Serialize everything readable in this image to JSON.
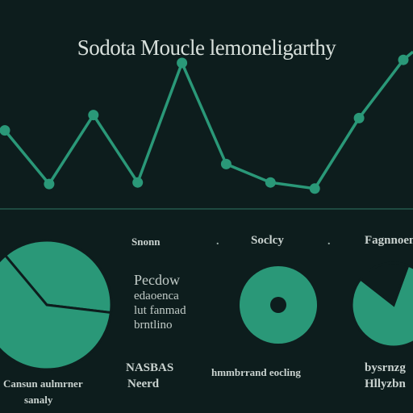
{
  "title": "Sodota Moucle lemoneligarthy",
  "colors": {
    "background": "#0d1d1d",
    "accent": "#2a9878",
    "text": "#d8e0dc",
    "divider": "#1e4a40"
  },
  "labels": {
    "col1_head": "Snonn",
    "col1_dots": ".",
    "col2_head": "Soclcy",
    "col2_dots": ".",
    "col3_head": "Fagnnoemen",
    "block_lines": [
      "Pecdow",
      "edaoenca",
      "lut fanmad",
      "brntlino"
    ],
    "footer_left_1": "Cansun aulmrner",
    "footer_left_2": "sanaly",
    "footer_mid_1": "NASBAS",
    "footer_mid_2": "Neerd",
    "footer_center": "hmmbrrand eocling",
    "footer_right_1": "bysrnzg",
    "footer_right_2": "Hllyzbn"
  },
  "chart_data": [
    {
      "type": "line",
      "title": "Sodota Moucle lemoneligarthy",
      "x": [
        1,
        2,
        3,
        4,
        5,
        6,
        7,
        8,
        9,
        10
      ],
      "series": [
        {
          "values": [
            5.6,
            2.1,
            6.6,
            2.2,
            10.0,
            3.4,
            2.2,
            1.8,
            6.4,
            10.2
          ]
        }
      ],
      "ylim": [
        0,
        12
      ],
      "grid": false,
      "legend": "none"
    },
    {
      "type": "pie",
      "values": [
        38,
        62
      ],
      "highlight": 0
    },
    {
      "type": "pie",
      "variant": "donut",
      "values": [
        100
      ]
    },
    {
      "type": "pie",
      "values": [
        80,
        20
      ],
      "highlight": 1
    }
  ]
}
